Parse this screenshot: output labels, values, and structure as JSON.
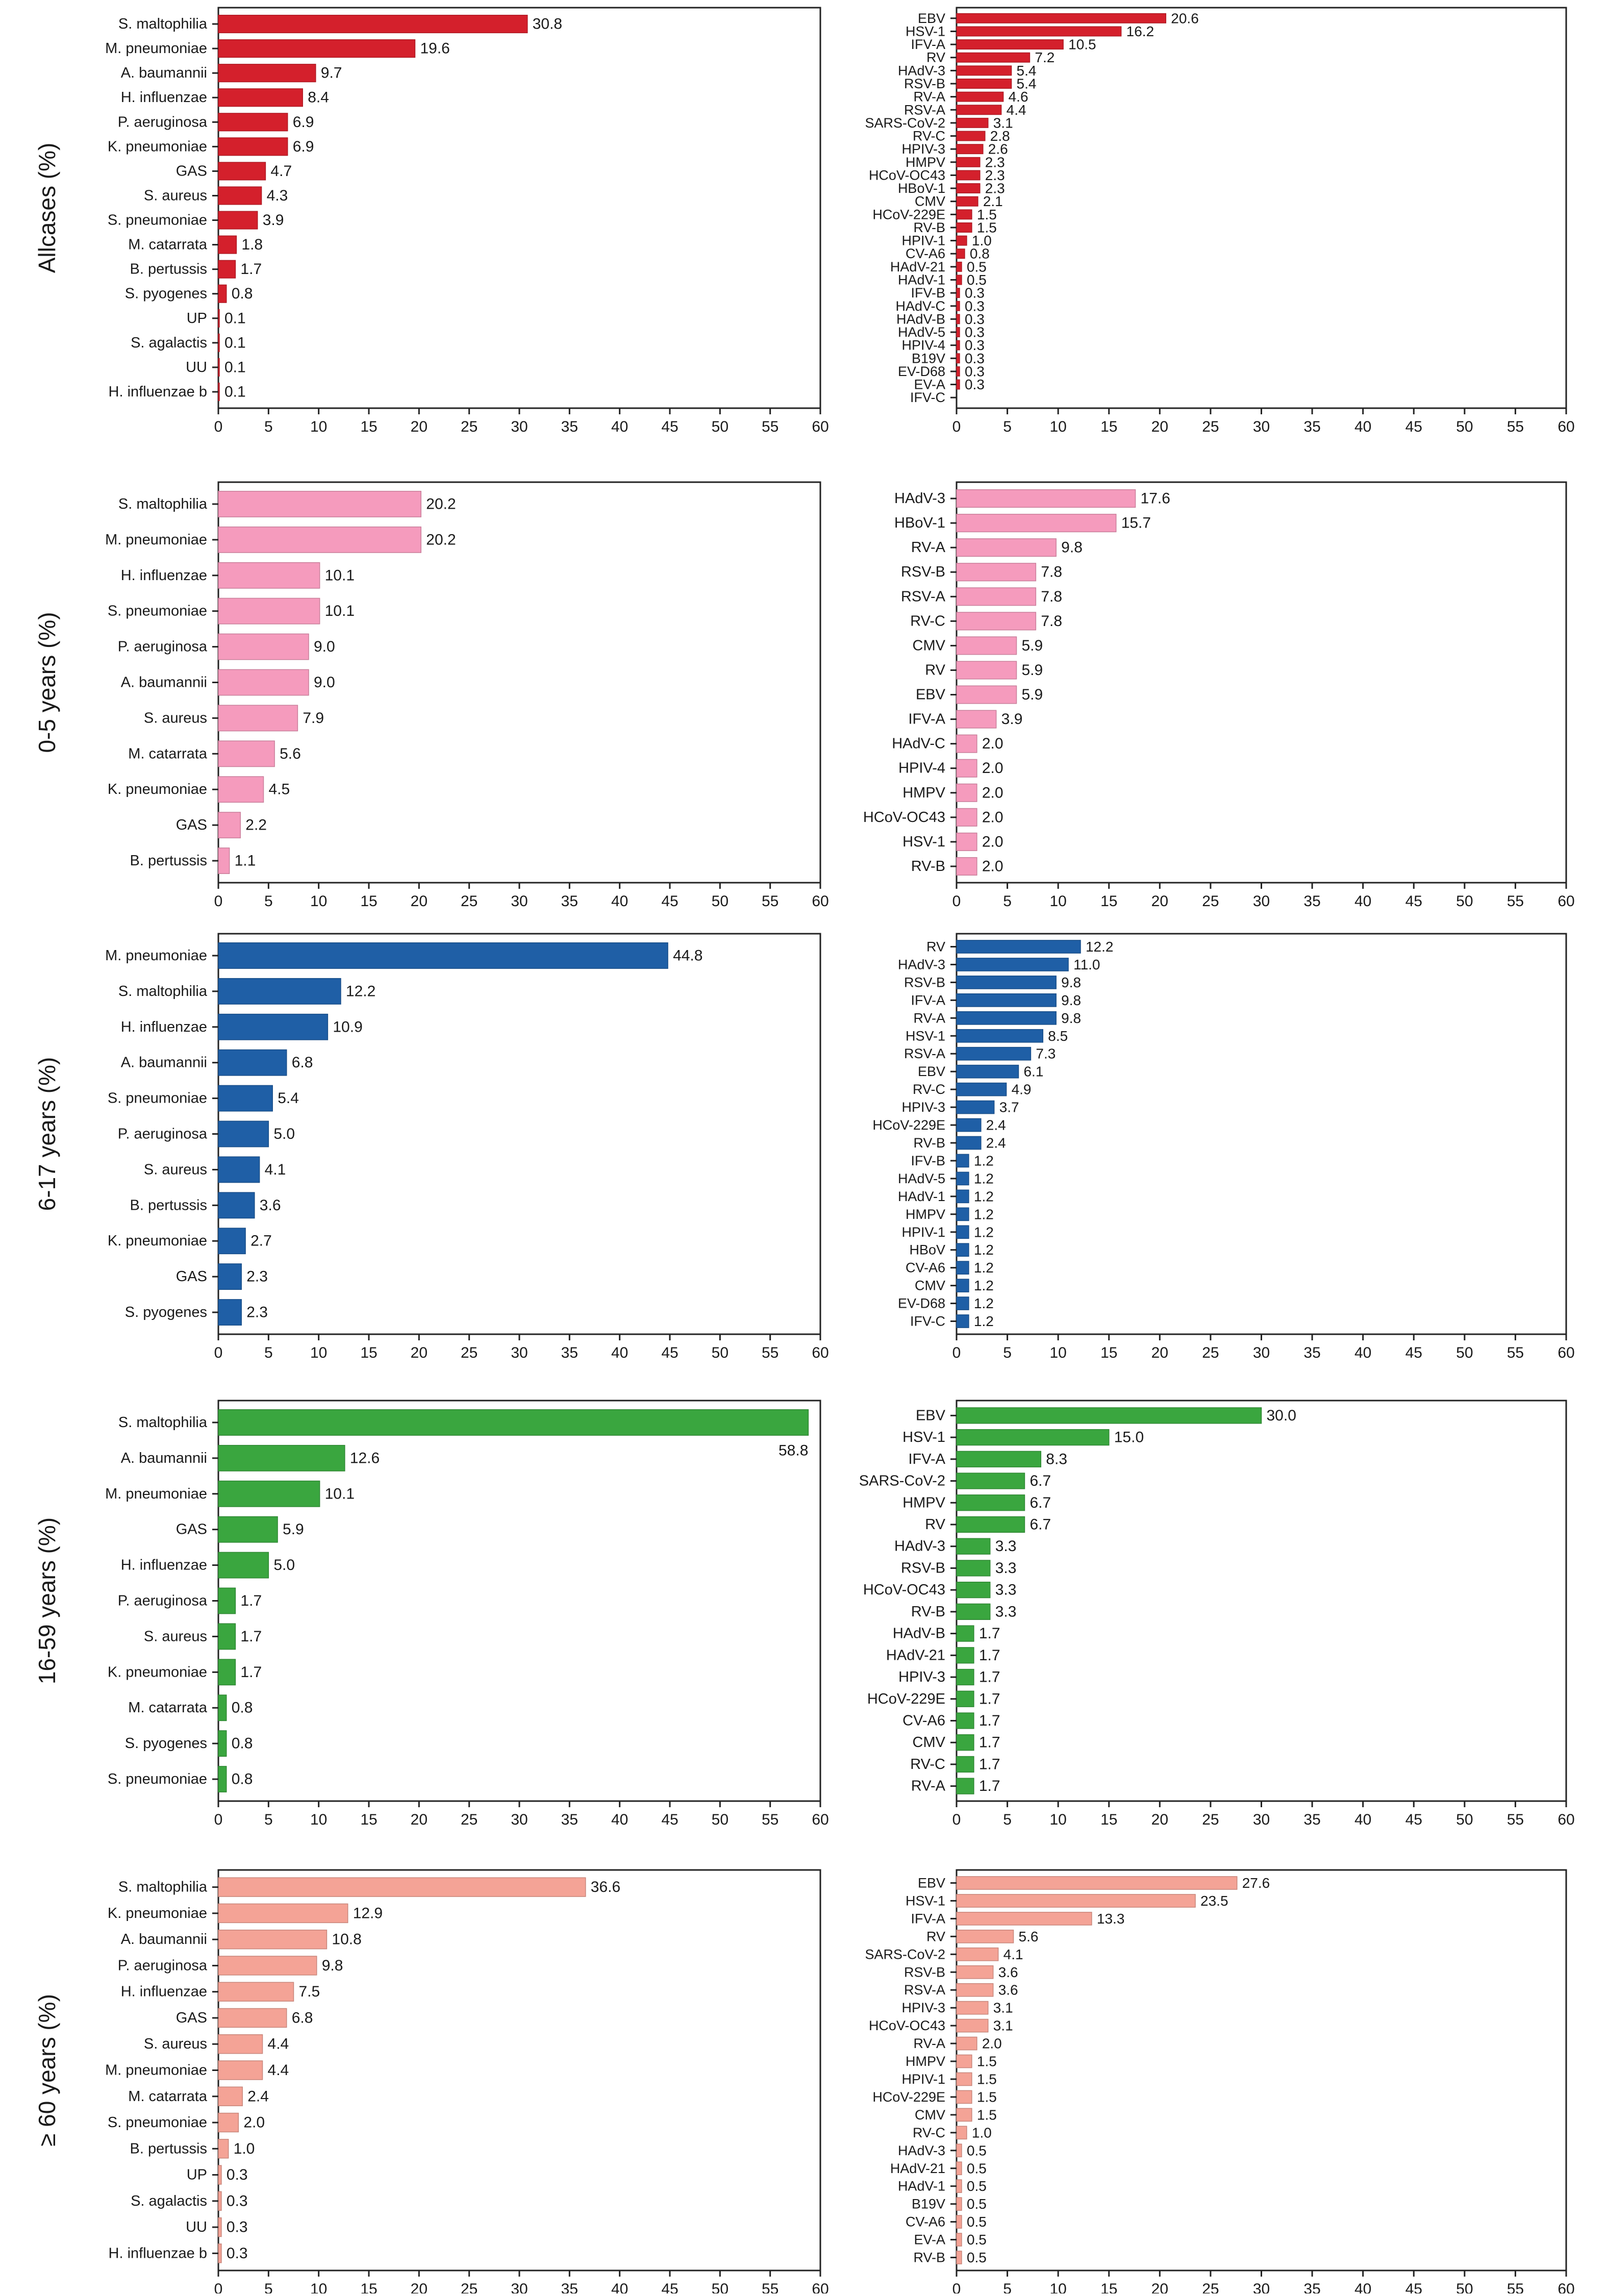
{
  "chart_data": [
    {
      "type": "bar",
      "orientation": "horizontal",
      "ylabel": "Allcases (%)",
      "color": "#d4202c",
      "xlim": [
        0,
        60
      ],
      "xticks": [
        0,
        5,
        10,
        15,
        20,
        25,
        30,
        35,
        40,
        45,
        50,
        55,
        60
      ],
      "grid": false,
      "categories": [
        "S. maltophilia",
        "M. pneumoniae",
        "A. baumannii",
        "H. influenzae",
        "P. aeruginosa",
        "K. pneumoniae",
        "GAS",
        "S. aureus",
        "S. pneumoniae",
        "M. catarrata",
        "B. pertussis",
        "S. pyogenes",
        "UP",
        "S. agalactis",
        "UU",
        "H. influenzae b"
      ],
      "values": [
        30.8,
        19.6,
        9.7,
        8.4,
        6.9,
        6.9,
        4.7,
        4.3,
        3.9,
        1.8,
        1.7,
        0.8,
        0.1,
        0.1,
        0.1,
        0.1
      ],
      "value_labels": [
        "30.8",
        "19.6",
        "9.7",
        "8.4",
        "6.9",
        "6.9",
        "4.7",
        "4.3",
        "3.9",
        "1.8",
        "1.7",
        "0.8",
        "0.1",
        "0.1",
        "0.1",
        "0.1"
      ]
    },
    {
      "type": "bar",
      "orientation": "horizontal",
      "ylabel": "",
      "color": "#d4202c",
      "xlim": [
        0,
        60
      ],
      "xticks": [
        0,
        5,
        10,
        15,
        20,
        25,
        30,
        35,
        40,
        45,
        50,
        55,
        60
      ],
      "grid": false,
      "categories": [
        "EBV",
        "HSV-1",
        "IFV-A",
        "RV",
        "HAdV-3",
        "RSV-B",
        "RV-A",
        "RSV-A",
        "SARS-CoV-2",
        "RV-C",
        "HPIV-3",
        "HMPV",
        "HCoV-OC43",
        "HBoV-1",
        "CMV",
        "HCoV-229E",
        "RV-B",
        "HPIV-1",
        "CV-A6",
        "HAdV-21",
        "HAdV-1",
        "IFV-B",
        "HAdV-C",
        "HAdV-B",
        "HAdV-5",
        "HPIV-4",
        "B19V",
        "EV-D68",
        "EV-A",
        "IFV-C"
      ],
      "values": [
        20.6,
        16.2,
        10.5,
        7.2,
        5.4,
        5.4,
        4.6,
        4.4,
        3.1,
        2.8,
        2.6,
        2.3,
        2.3,
        2.3,
        2.1,
        1.5,
        1.5,
        1.0,
        0.8,
        0.5,
        0.5,
        0.3,
        0.3,
        0.3,
        0.3,
        0.3,
        0.3,
        0.3,
        0.3,
        0
      ],
      "value_labels": [
        "20.6",
        "16.2",
        "10.5",
        "7.2",
        "5.4",
        "5.4",
        "4.6",
        "4.4",
        "3.1",
        "2.8",
        "2.6",
        "2.3",
        "2.3",
        "2.3",
        "2.1",
        "1.5",
        "1.5",
        "1.0",
        "0.8",
        "0.5",
        "0.5",
        "0.3",
        "0.3",
        "0.3",
        "0.3",
        "0.3",
        "0.3",
        "0.3",
        "0.3",
        ""
      ]
    },
    {
      "type": "bar",
      "orientation": "horizontal",
      "ylabel": "0-5 years (%)",
      "color": "#f59bbd",
      "xlim": [
        0,
        60
      ],
      "xticks": [
        0,
        5,
        10,
        15,
        20,
        25,
        30,
        35,
        40,
        45,
        50,
        55,
        60
      ],
      "grid": false,
      "categories": [
        "S. maltophilia",
        "M. pneumoniae",
        "H. influenzae",
        "S. pneumoniae",
        "P. aeruginosa",
        "A. baumannii",
        "S. aureus",
        "M. catarrata",
        "K. pneumoniae",
        "GAS",
        "B. pertussis"
      ],
      "values": [
        20.2,
        20.2,
        10.1,
        10.1,
        9.0,
        9.0,
        7.9,
        5.6,
        4.5,
        2.2,
        1.1
      ],
      "value_labels": [
        "20.2",
        "20.2",
        "10.1",
        "10.1",
        "9.0",
        "9.0",
        "7.9",
        "5.6",
        "4.5",
        "2.2",
        "1.1"
      ]
    },
    {
      "type": "bar",
      "orientation": "horizontal",
      "ylabel": "",
      "color": "#f59bbd",
      "xlim": [
        0,
        60
      ],
      "xticks": [
        0,
        5,
        10,
        15,
        20,
        25,
        30,
        35,
        40,
        45,
        50,
        55,
        60
      ],
      "grid": false,
      "categories": [
        "HAdV-3",
        "HBoV-1",
        "RV-A",
        "RSV-B",
        "RSV-A",
        "RV-C",
        "CMV",
        "RV",
        "EBV",
        "IFV-A",
        "HAdV-C",
        "HPIV-4",
        "HMPV",
        "HCoV-OC43",
        "HSV-1",
        "RV-B"
      ],
      "values": [
        17.6,
        15.7,
        9.8,
        7.8,
        7.8,
        7.8,
        5.9,
        5.9,
        5.9,
        3.9,
        2.0,
        2.0,
        2.0,
        2.0,
        2.0,
        2.0
      ],
      "value_labels": [
        "17.6",
        "15.7",
        "9.8",
        "7.8",
        "7.8",
        "7.8",
        "5.9",
        "5.9",
        "5.9",
        "3.9",
        "2.0",
        "2.0",
        "2.0",
        "2.0",
        "2.0",
        "2.0"
      ]
    },
    {
      "type": "bar",
      "orientation": "horizontal",
      "ylabel": "6-17 years (%)",
      "color": "#1f5fa6",
      "xlim": [
        0,
        60
      ],
      "xticks": [
        0,
        5,
        10,
        15,
        20,
        25,
        30,
        35,
        40,
        45,
        50,
        55,
        60
      ],
      "grid": false,
      "categories": [
        "M. pneumoniae",
        "S. maltophilia",
        "H. influenzae",
        "A. baumannii",
        "S. pneumoniae",
        "P. aeruginosa",
        "S. aureus",
        "B. pertussis",
        "K. pneumoniae",
        "GAS",
        "S. pyogenes"
      ],
      "values": [
        44.8,
        12.2,
        10.9,
        6.8,
        5.4,
        5.0,
        4.1,
        3.6,
        2.7,
        2.3,
        2.3
      ],
      "value_labels": [
        "44.8",
        "12.2",
        "10.9",
        "6.8",
        "5.4",
        "5.0",
        "4.1",
        "3.6",
        "2.7",
        "2.3",
        "2.3"
      ]
    },
    {
      "type": "bar",
      "orientation": "horizontal",
      "ylabel": "",
      "color": "#1f5fa6",
      "xlim": [
        0,
        60
      ],
      "xticks": [
        0,
        5,
        10,
        15,
        20,
        25,
        30,
        35,
        40,
        45,
        50,
        55,
        60
      ],
      "grid": false,
      "categories": [
        "RV",
        "HAdV-3",
        "RSV-B",
        "IFV-A",
        "RV-A",
        "HSV-1",
        "RSV-A",
        "EBV",
        "RV-C",
        "HPIV-3",
        "HCoV-229E",
        "RV-B",
        "IFV-B",
        "HAdV-5",
        "HAdV-1",
        "HMPV",
        "HPIV-1",
        "HBoV",
        "CV-A6",
        "CMV",
        "EV-D68",
        "IFV-C"
      ],
      "values": [
        12.2,
        11.0,
        9.8,
        9.8,
        9.8,
        8.5,
        7.3,
        6.1,
        4.9,
        3.7,
        2.4,
        2.4,
        1.2,
        1.2,
        1.2,
        1.2,
        1.2,
        1.2,
        1.2,
        1.2,
        1.2,
        1.2
      ],
      "value_labels": [
        "12.2",
        "11.0",
        "9.8",
        "9.8",
        "9.8",
        "8.5",
        "7.3",
        "6.1",
        "4.9",
        "3.7",
        "2.4",
        "2.4",
        "1.2",
        "1.2",
        "1.2",
        "1.2",
        "1.2",
        "1.2",
        "1.2",
        "1.2",
        "1.2",
        "1.2"
      ]
    },
    {
      "type": "bar",
      "orientation": "horizontal",
      "ylabel": "16-59 years (%)",
      "color": "#3aa63f",
      "xlim": [
        0,
        60
      ],
      "xticks": [
        0,
        5,
        10,
        15,
        20,
        25,
        30,
        35,
        40,
        45,
        50,
        55,
        60
      ],
      "grid": false,
      "categories": [
        "S. maltophilia",
        "A. baumannii",
        "M. pneumoniae",
        "GAS",
        "H. influenzae",
        "P. aeruginosa",
        "S. aureus",
        "K. pneumoniae",
        "M. catarrata",
        "S. pyogenes",
        "S. pneumoniae"
      ],
      "values": [
        58.8,
        12.6,
        10.1,
        5.9,
        5.0,
        1.7,
        1.7,
        1.7,
        0.8,
        0.8,
        0.8
      ],
      "value_labels": [
        "58.8",
        "12.6",
        "10.1",
        "5.9",
        "5.0",
        "1.7",
        "1.7",
        "1.7",
        "0.8",
        "0.8",
        "0.8"
      ]
    },
    {
      "type": "bar",
      "orientation": "horizontal",
      "ylabel": "",
      "color": "#3aa63f",
      "xlim": [
        0,
        60
      ],
      "xticks": [
        0,
        5,
        10,
        15,
        20,
        25,
        30,
        35,
        40,
        45,
        50,
        55,
        60
      ],
      "grid": false,
      "categories": [
        "EBV",
        "HSV-1",
        "IFV-A",
        "SARS-CoV-2",
        "HMPV",
        "RV",
        "HAdV-3",
        "RSV-B",
        "HCoV-OC43",
        "RV-B",
        "HAdV-B",
        "HAdV-21",
        "HPIV-3",
        "HCoV-229E",
        "CV-A6",
        "CMV",
        "RV-C",
        "RV-A"
      ],
      "values": [
        30.0,
        15.0,
        8.3,
        6.7,
        6.7,
        6.7,
        3.3,
        3.3,
        3.3,
        3.3,
        1.7,
        1.7,
        1.7,
        1.7,
        1.7,
        1.7,
        1.7,
        1.7
      ],
      "value_labels": [
        "30.0",
        "15.0",
        "8.3",
        "6.7",
        "6.7",
        "6.7",
        "3.3",
        "3.3",
        "3.3",
        "3.3",
        "1.7",
        "1.7",
        "1.7",
        "1.7",
        "1.7",
        "1.7",
        "1.7",
        "1.7"
      ]
    },
    {
      "type": "bar",
      "orientation": "horizontal",
      "ylabel": "≥ 60 years (%)",
      "color": "#f4a396",
      "xlim": [
        0,
        60
      ],
      "xticks": [
        0,
        5,
        10,
        15,
        20,
        25,
        30,
        35,
        40,
        45,
        50,
        55,
        60
      ],
      "grid": false,
      "categories": [
        "S. maltophilia",
        "K. pneumoniae",
        "A. baumannii",
        "P. aeruginosa",
        "H. influenzae",
        "GAS",
        "S. aureus",
        "M. pneumoniae",
        "M. catarrata",
        "S. pneumoniae",
        "B. pertussis",
        "UP",
        "S. agalactis",
        "UU",
        "H. influenzae b"
      ],
      "values": [
        36.6,
        12.9,
        10.8,
        9.8,
        7.5,
        6.8,
        4.4,
        4.4,
        2.4,
        2.0,
        1.0,
        0.3,
        0.3,
        0.3,
        0.3
      ],
      "value_labels": [
        "36.6",
        "12.9",
        "10.8",
        "9.8",
        "7.5",
        "6.8",
        "4.4",
        "4.4",
        "2.4",
        "2.0",
        "1.0",
        "0.3",
        "0.3",
        "0.3",
        "0.3"
      ]
    },
    {
      "type": "bar",
      "orientation": "horizontal",
      "ylabel": "",
      "color": "#f4a396",
      "xlim": [
        0,
        60
      ],
      "xticks": [
        0,
        5,
        10,
        15,
        20,
        25,
        30,
        35,
        40,
        45,
        50,
        55,
        60
      ],
      "grid": false,
      "categories": [
        "EBV",
        "HSV-1",
        "IFV-A",
        "RV",
        "SARS-CoV-2",
        "RSV-B",
        "RSV-A",
        "HPIV-3",
        "HCoV-OC43",
        "RV-A",
        "HMPV",
        "HPIV-1",
        "HCoV-229E",
        "CMV",
        "RV-C",
        "HAdV-3",
        "HAdV-21",
        "HAdV-1",
        "B19V",
        "CV-A6",
        "EV-A",
        "RV-B"
      ],
      "values": [
        27.6,
        23.5,
        13.3,
        5.6,
        4.1,
        3.6,
        3.6,
        3.1,
        3.1,
        2.0,
        1.5,
        1.5,
        1.5,
        1.5,
        1.0,
        0.5,
        0.5,
        0.5,
        0.5,
        0.5,
        0.5,
        0.5
      ],
      "value_labels": [
        "27.6",
        "23.5",
        "13.3",
        "5.6",
        "4.1",
        "3.6",
        "3.6",
        "3.1",
        "3.1",
        "2.0",
        "1.5",
        "1.5",
        "1.5",
        "1.5",
        "1.0",
        "0.5",
        "0.5",
        "0.5",
        "0.5",
        "0.5",
        "0.5",
        "0.5"
      ]
    }
  ]
}
